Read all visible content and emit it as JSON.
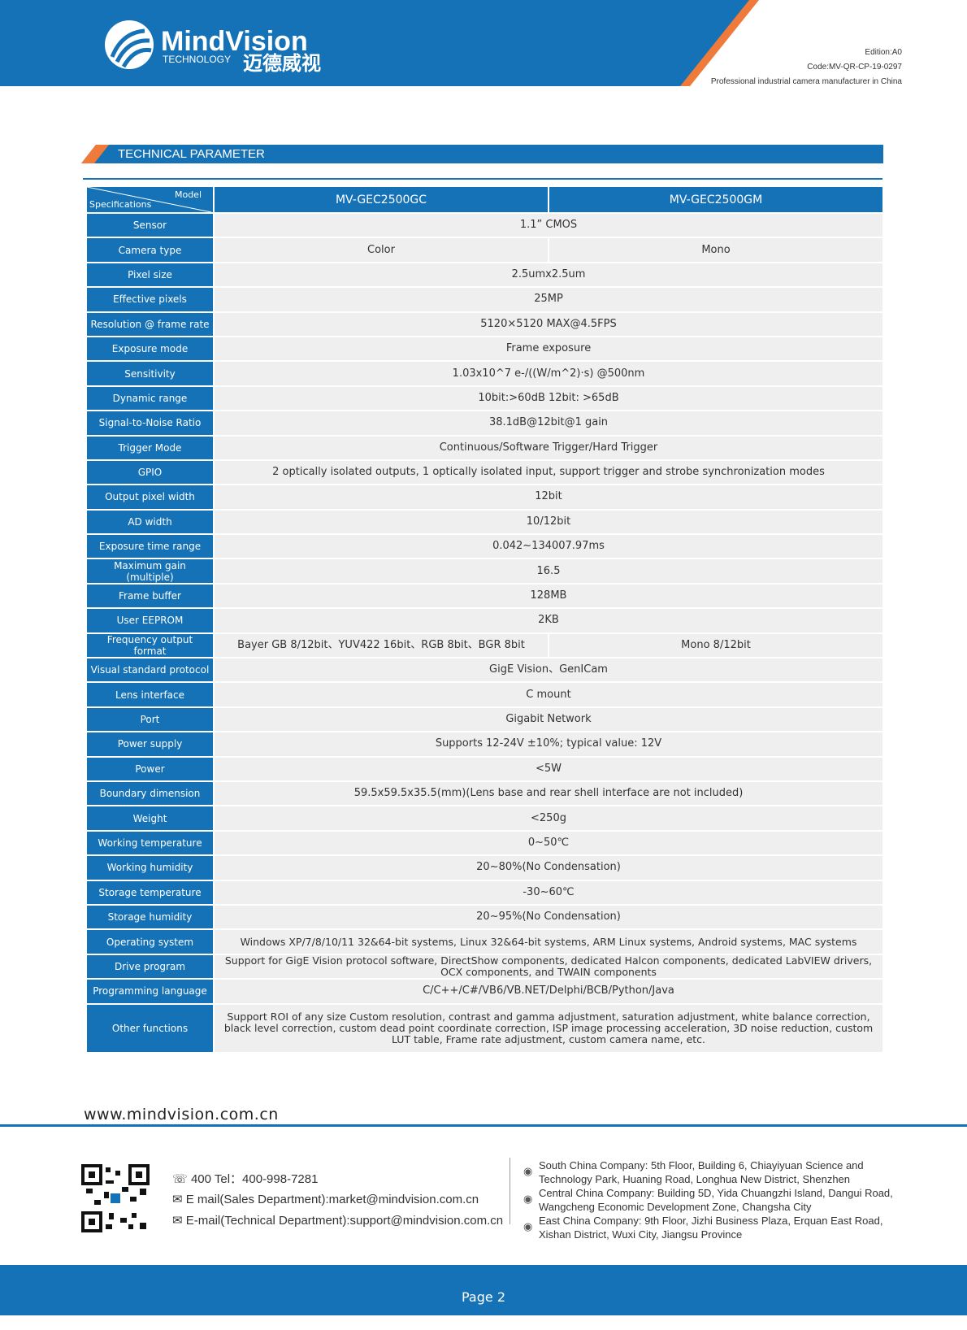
{
  "header": {
    "logo_name": "MindVision",
    "logo_sub": "TECHNOLOGY",
    "logo_cn": "迈德威视",
    "edition": "Edition:A0",
    "code": "Code:MV-QR-CP-19-0297",
    "tagline": "Professional industrial camera manufacturer in China"
  },
  "section_title": "TECHNICAL PARAMETER",
  "table": {
    "corner_model": "Model",
    "corner_spec": "Specifications",
    "models": [
      "MV-GEC2500GC",
      "MV-GEC2500GM"
    ],
    "rows": [
      {
        "label": "Sensor",
        "values": [
          "1.1” CMOS"
        ]
      },
      {
        "label": "Camera type",
        "values": [
          "Color",
          "Mono"
        ]
      },
      {
        "label": "Pixel size",
        "values": [
          "2.5umx2.5um"
        ]
      },
      {
        "label": "Effective pixels",
        "values": [
          "25MP"
        ]
      },
      {
        "label": "Resolution @ frame rate",
        "values": [
          "5120×5120 MAX@4.5FPS"
        ]
      },
      {
        "label": "Exposure mode",
        "values": [
          "Frame exposure"
        ]
      },
      {
        "label": "Sensitivity",
        "values": [
          "1.03x10^7 e-/((W/m^2)·s) @500nm"
        ]
      },
      {
        "label": "Dynamic range",
        "values": [
          "10bit:>60dB 12bit: >65dB"
        ]
      },
      {
        "label": "Signal-to-Noise Ratio",
        "values": [
          "38.1dB@12bit@1 gain"
        ]
      },
      {
        "label": "Trigger Mode",
        "values": [
          "Continuous/Software Trigger/Hard Trigger"
        ]
      },
      {
        "label": "GPIO",
        "values": [
          "2 optically isolated outputs, 1 optically isolated input, support trigger and strobe synchronization modes"
        ]
      },
      {
        "label": "Output pixel width",
        "values": [
          "12bit"
        ]
      },
      {
        "label": "AD width",
        "values": [
          "10/12bit"
        ]
      },
      {
        "label": "Exposure time range",
        "values": [
          "0.042~134007.97ms"
        ]
      },
      {
        "label": "Maximum gain (multiple)",
        "values": [
          "16.5"
        ]
      },
      {
        "label": "Frame buffer",
        "values": [
          "128MB"
        ]
      },
      {
        "label": "User EEPROM",
        "values": [
          "2KB"
        ]
      },
      {
        "label": "Frequency output format",
        "values": [
          "Bayer GB 8/12bit、YUV422 16bit、RGB 8bit、BGR 8bit",
          "Mono 8/12bit"
        ]
      },
      {
        "label": "Visual standard protocol",
        "values": [
          "GigE Vision、GenICam"
        ]
      },
      {
        "label": "Lens interface",
        "values": [
          "C mount"
        ]
      },
      {
        "label": "Port",
        "values": [
          "Gigabit Network"
        ]
      },
      {
        "label": "Power supply",
        "values": [
          "Supports 12-24V ±10%; typical value: 12V"
        ]
      },
      {
        "label": "Power",
        "values": [
          "<5W"
        ]
      },
      {
        "label": "Boundary dimension",
        "values": [
          "59.5x59.5x35.5(mm)(Lens base and rear shell interface are not included)"
        ]
      },
      {
        "label": "Weight",
        "values": [
          "<250g"
        ]
      },
      {
        "label": "Working temperature",
        "values": [
          "0~50℃"
        ]
      },
      {
        "label": "Working humidity",
        "values": [
          "20~80%(No Condensation)"
        ]
      },
      {
        "label": "Storage temperature",
        "values": [
          "-30~60℃"
        ]
      },
      {
        "label": "Storage humidity",
        "values": [
          "20~95%(No Condensation)"
        ]
      },
      {
        "label": "Operating system",
        "values": [
          "Windows XP/7/8/10/11 32&64-bit systems, Linux 32&64-bit systems, ARM Linux systems, Android systems, MAC systems"
        ]
      },
      {
        "label": "Drive program",
        "values": [
          "Support for GigE Vision protocol software, DirectShow components, dedicated Halcon components, dedicated LabVIEW drivers, OCX components, and TWAIN components"
        ]
      },
      {
        "label": "Programming language",
        "values": [
          "C/C++/C#/VB6/VB.NET/Delphi/BCB/Python/Java"
        ]
      },
      {
        "label": "Other functions",
        "values": [
          "Support ROI of any size Custom resolution, contrast and gamma adjustment, saturation adjustment, white balance correction, black level correction, custom dead point coordinate correction, ISP image processing acceleration, 3D noise reduction, custom LUT table, Frame rate adjustment, custom camera name, etc."
        ]
      }
    ]
  },
  "footer": {
    "website": "www.mindvision.com.cn",
    "contacts": [
      "400 Tel：400-998-7281",
      "E mail(Sales Department):market@mindvision.com.cn",
      "E-mail(Technical Department):support@mindvision.com.cn"
    ],
    "addresses": [
      "South China Company: 5th Floor, Building 6, Chiayiyuan Science and Technology Park, Huaning Road, Longhua New District, Shenzhen",
      "Central China Company: Building 5D, Yida Chuangzhi Island, Dangui Road, Wangcheng Economic Development Zone, Changsha City",
      "East China Company: 9th Floor, Jizhi Business Plaza, Erquan East Road, Xishan District, Wuxi City, Jiangsu Province"
    ],
    "page": "Page 2"
  }
}
